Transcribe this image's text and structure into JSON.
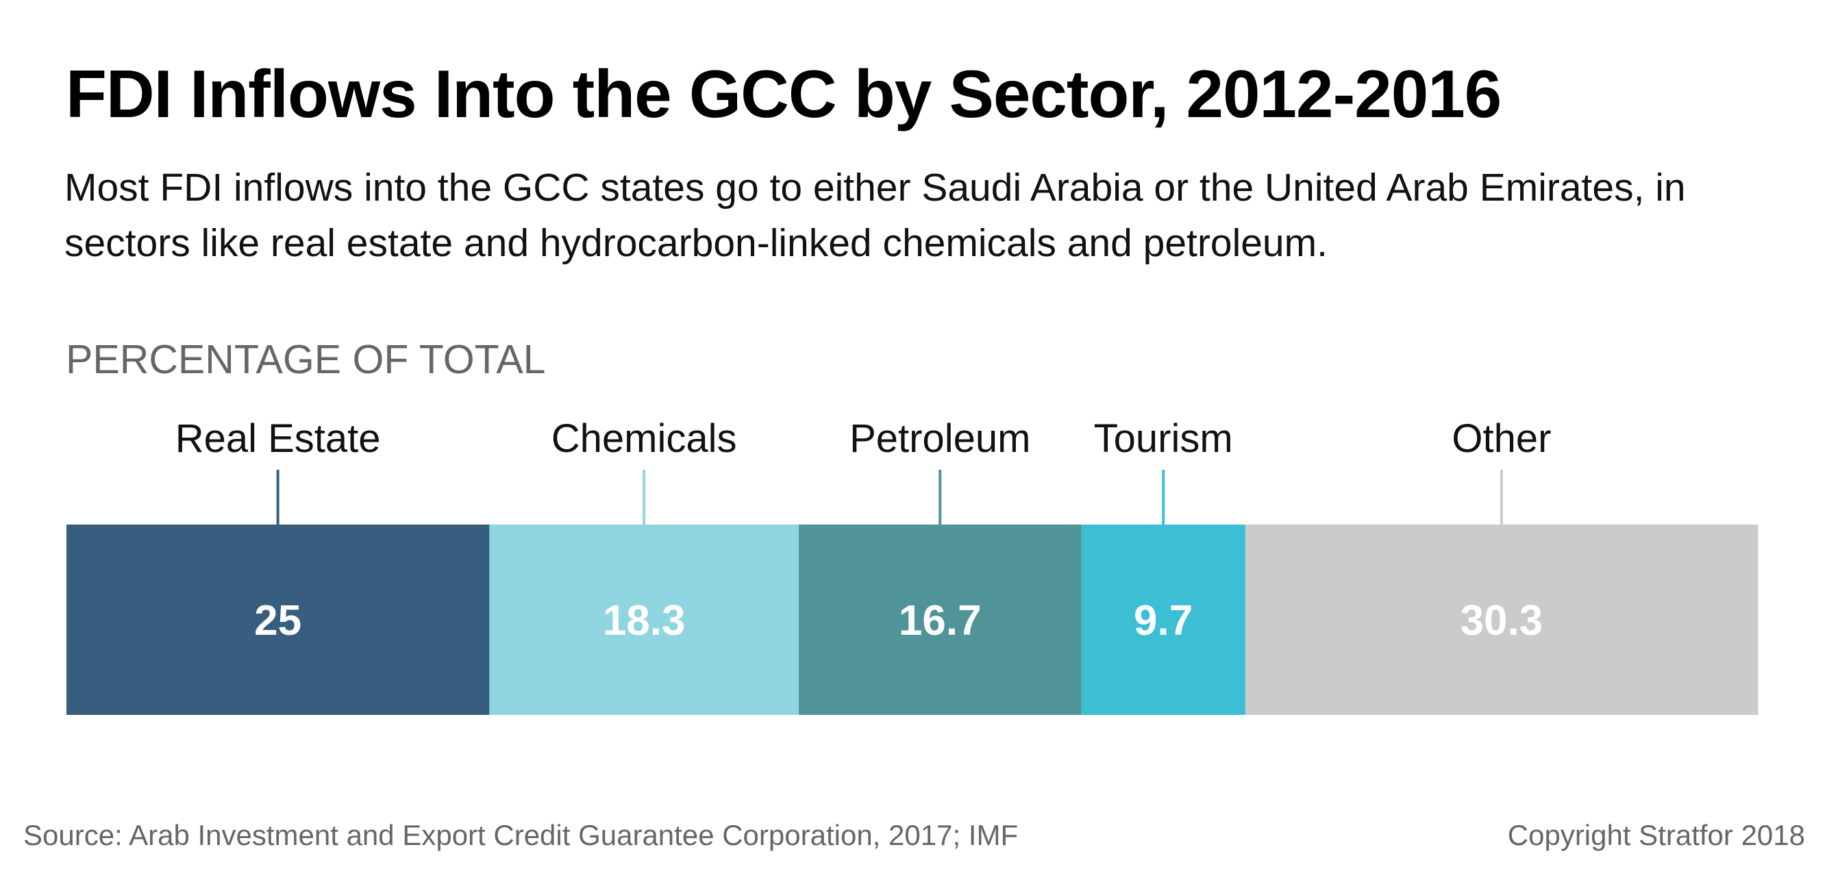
{
  "header": {
    "title": "FDI Inflows Into the GCC by Sector, 2012-2016",
    "subtitle": "Most FDI inflows into the GCC states go to either Saudi Arabia or the United Arab Emirates, in sectors like real estate and hydrocarbon-linked chemicals and petroleum."
  },
  "chart_data": {
    "type": "bar",
    "orientation": "horizontal-stacked",
    "title": "FDI Inflows Into the GCC by Sector, 2012-2016",
    "subtitle": "Most FDI inflows into the GCC states go to either Saudi Arabia or the United Arab Emirates, in sectors like real estate and hydrocarbon-linked chemicals and petroleum.",
    "value_label": "PERCENTAGE OF TOTAL",
    "categories": [
      "Real Estate",
      "Chemicals",
      "Petroleum",
      "Tourism",
      "Other"
    ],
    "values": [
      25,
      18.3,
      16.7,
      9.7,
      30.3
    ],
    "colors": [
      "#375d7f",
      "#8fd5df",
      "#509499",
      "#3cbfd4",
      "#cbcbcb"
    ],
    "legend": "labels above segments",
    "grid": false
  },
  "footer": {
    "source": "Source: Arab Investment and Export Credit Guarantee Corporation, 2017; IMF",
    "copyright": "Copyright Stratfor 2018"
  }
}
